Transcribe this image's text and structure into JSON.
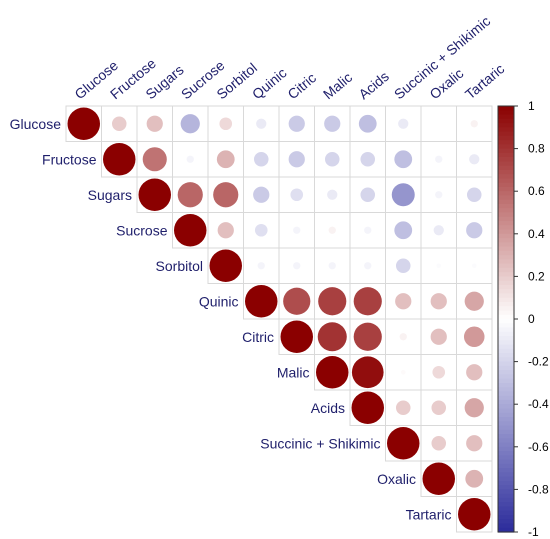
{
  "chart_data": {
    "type": "heatmap",
    "subtype": "correlation-circles-upper-triangle",
    "variables": [
      "Glucose",
      "Fructose",
      "Sugars",
      "Sucrose",
      "Sorbitol",
      "Quinic",
      "Citric",
      "Malic",
      "Acids",
      "Succinic + Shikimic",
      "Oxalic",
      "Tartaric"
    ],
    "matrix": [
      [
        1,
        0.2,
        0.25,
        -0.35,
        0.15,
        -0.1,
        -0.25,
        -0.25,
        -0.3,
        -0.1,
        0,
        0.05
      ],
      [
        null,
        1,
        0.55,
        -0.05,
        0.3,
        -0.2,
        -0.25,
        -0.2,
        -0.2,
        -0.3,
        -0.05,
        -0.1
      ],
      [
        null,
        null,
        1,
        0.6,
        0.6,
        -0.25,
        -0.15,
        -0.1,
        -0.2,
        -0.5,
        -0.05,
        -0.2
      ],
      [
        null,
        null,
        null,
        1,
        0.25,
        -0.15,
        -0.05,
        0.05,
        -0.05,
        -0.3,
        -0.1,
        -0.25
      ],
      [
        null,
        null,
        null,
        null,
        1,
        -0.05,
        -0.05,
        -0.05,
        -0.05,
        -0.2,
        -0.02,
        -0.02
      ],
      [
        null,
        null,
        null,
        null,
        null,
        1,
        0.7,
        0.75,
        0.75,
        0.25,
        0.25,
        0.35
      ],
      [
        null,
        null,
        null,
        null,
        null,
        null,
        1,
        0.8,
        0.75,
        0.05,
        0.25,
        0.4
      ],
      [
        null,
        null,
        null,
        null,
        null,
        null,
        null,
        1,
        0.95,
        0.02,
        0.15,
        0.25
      ],
      [
        null,
        null,
        null,
        null,
        null,
        null,
        null,
        null,
        1,
        0.2,
        0.2,
        0.35
      ],
      [
        null,
        null,
        null,
        null,
        null,
        null,
        null,
        null,
        null,
        1,
        0.2,
        0.25
      ],
      [
        null,
        null,
        null,
        null,
        null,
        null,
        null,
        null,
        null,
        null,
        1,
        0.3
      ],
      [
        null,
        null,
        null,
        null,
        null,
        null,
        null,
        null,
        null,
        null,
        null,
        1
      ]
    ],
    "colorbar": {
      "range": [
        -1,
        1
      ],
      "ticks": [
        "1",
        "0.8",
        "0.6",
        "0.4",
        "0.2",
        "0",
        "-0.2",
        "-0.4",
        "-0.6",
        "-0.8",
        "-1"
      ],
      "colors": {
        "negative": "#2b2b9b",
        "neutral": "#ffffff",
        "positive": "#8b0000"
      }
    },
    "grid": true,
    "legend_position": "right"
  }
}
